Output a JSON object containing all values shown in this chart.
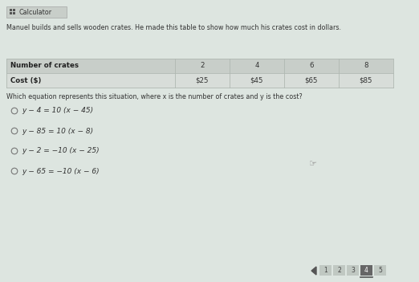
{
  "bg_color": "#dde5e0",
  "white_bg": "#e8ede9",
  "calculator_label": "Calculator",
  "intro_text": "Manuel builds and sells wooden crates. He made this table to show how much his crates cost in dollars.",
  "table_headers": [
    "Number of crates",
    "2",
    "4",
    "6",
    "8"
  ],
  "table_row2": [
    "Cost ($)",
    "$25",
    "$45",
    "$65",
    "$85"
  ],
  "question": "Which equation represents this situation, where x is the number of crates and y is the cost?",
  "options": [
    "y − 4 = 10 (x − 45)",
    "y − 85 = 10 (x − 8)",
    "y − 2 = −10 (x − 25)",
    "y − 65 = −10 (x − 6)"
  ],
  "page_numbers": [
    "1",
    "2",
    "3",
    "4",
    "5"
  ],
  "current_page": "4",
  "table_header_bg": "#c8cec9",
  "table_row2_bg": "#d8ddd9",
  "table_border_color": "#b0b8b2",
  "text_color": "#333333",
  "bold_color": "#222222",
  "page_active_bg": "#666666",
  "page_inactive_bg": "#c0c8c2",
  "page_active_text": "#ffffff",
  "page_inactive_text": "#444444",
  "arrow_color": "#555555",
  "calc_bar_bg": "#c8cec9",
  "calc_icon_color": "#555555"
}
